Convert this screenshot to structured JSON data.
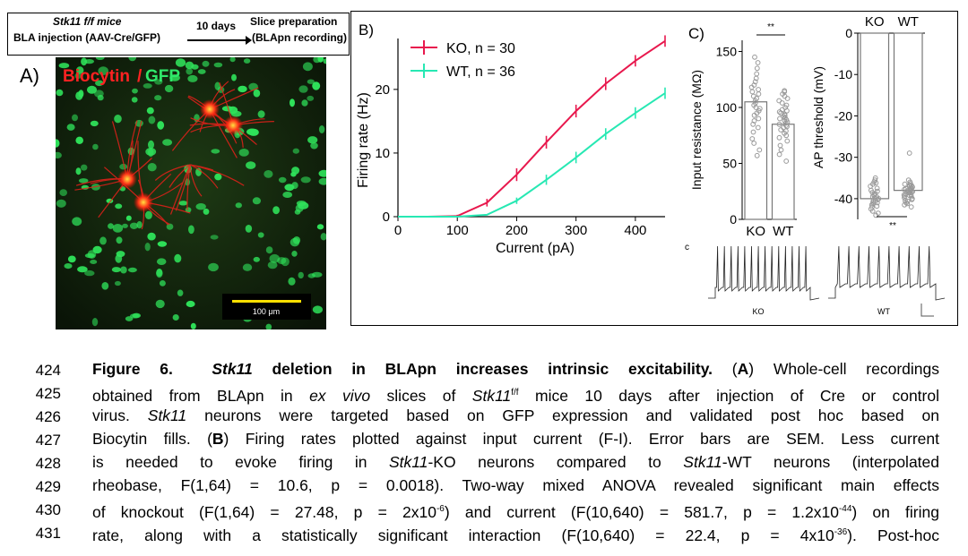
{
  "schematic": {
    "line1": "Stk11 f/f mice",
    "line2": "BLA injection (AAV-Cre/GFP)",
    "arrow_label": "10 days",
    "right1": "Slice preparation",
    "right2": "(BLApn recording)"
  },
  "panel_a": {
    "label": "A)",
    "title_red": "Biocytin",
    "title_sep": "/",
    "title_green": "GFP",
    "scale_bar": "100 μm"
  },
  "panel_b": {
    "label": "B)",
    "chart_data": {
      "type": "line",
      "xlabel": "Current (pA)",
      "ylabel": "Firing rate (Hz)",
      "xlim": [
        0,
        450
      ],
      "ylim": [
        0,
        28
      ],
      "xticks": [
        0,
        100,
        200,
        300,
        400
      ],
      "yticks": [
        0,
        10,
        20
      ],
      "legend_position": "top-left",
      "x": [
        0,
        50,
        100,
        150,
        200,
        250,
        300,
        350,
        400,
        450
      ],
      "series": [
        {
          "name": "KO, n = 30",
          "color": "#e8184d",
          "values": [
            0,
            0,
            0.1,
            2.2,
            6.6,
            11.7,
            16.6,
            20.9,
            24.5,
            27.6
          ],
          "err": [
            0,
            0,
            0.2,
            0.6,
            1.0,
            1.0,
            1.0,
            1.0,
            0.9,
            0.9
          ]
        },
        {
          "name": "WT, n = 36",
          "color": "#27e8b3",
          "values": [
            0,
            0,
            0,
            0.3,
            2.5,
            5.8,
            9.3,
            13.0,
            16.3,
            19.4
          ],
          "err": [
            0,
            0,
            0,
            0.1,
            0.5,
            0.8,
            0.9,
            0.9,
            0.9,
            0.9
          ]
        }
      ]
    }
  },
  "panel_c": {
    "label": "C)",
    "sig1": "**",
    "sig2": "**",
    "chart_data": [
      {
        "type": "bar",
        "ylabel": "Input resistance (MΩ)",
        "categories": [
          "KO",
          "WT"
        ],
        "values": [
          105,
          85
        ],
        "ylim": [
          0,
          160
        ],
        "yticks": [
          0,
          50,
          100,
          150
        ],
        "points": [
          [
            57,
            62,
            68,
            72,
            78,
            82,
            85,
            88,
            90,
            93,
            95,
            97,
            99,
            100,
            102,
            104,
            106,
            108,
            110,
            112,
            114,
            116,
            118,
            120,
            123,
            126,
            130,
            135,
            140,
            145
          ],
          [
            52,
            58,
            62,
            66,
            70,
            73,
            75,
            77,
            79,
            80,
            82,
            83,
            84,
            85,
            86,
            87,
            88,
            89,
            90,
            91,
            92,
            93,
            94,
            95,
            96,
            97,
            98,
            100,
            102,
            104,
            106,
            108,
            110,
            112,
            114,
            115
          ]
        ]
      },
      {
        "type": "bar",
        "ylabel": "AP threshold (mV)",
        "categories": [
          "KO",
          "WT"
        ],
        "values": [
          -40,
          -38
        ],
        "ylim": [
          -45,
          0
        ],
        "yticks": [
          0,
          -10,
          -20,
          -30,
          -40
        ],
        "points": [
          [
            -44,
            -43.5,
            -43,
            -42.5,
            -42,
            -41.8,
            -41.5,
            -41.2,
            -41,
            -40.8,
            -40.5,
            -40.2,
            -40,
            -39.8,
            -39.5,
            -39.2,
            -39,
            -38.8,
            -38.5,
            -38.2,
            -38,
            -37.5,
            -37,
            -36.5,
            -36,
            -35.5,
            -35,
            -36.2,
            -39.6,
            -40.4
          ],
          [
            -42,
            -41.5,
            -41,
            -40.5,
            -40,
            -39.8,
            -39.5,
            -39.2,
            -39,
            -38.8,
            -38.5,
            -38.2,
            -38,
            -37.8,
            -37.5,
            -37.2,
            -37,
            -36.8,
            -36.5,
            -36,
            -35.5,
            -38.4,
            -38.6,
            -37.6,
            -39.4,
            -40.2,
            -41.2,
            -36.4,
            -37.4,
            -38.1,
            -39.1,
            -38.3,
            -37.9,
            -40.6,
            -29,
            -36.7
          ]
        ]
      }
    ],
    "trace_letter": "c",
    "trace_ko": "KO",
    "trace_wt": "WT"
  },
  "caption": {
    "line_numbers": [
      "424",
      "425",
      "426",
      "427",
      "428",
      "429",
      "430",
      "431"
    ],
    "l1": {
      "fig": "Figure 6.",
      "gene": "Stk11",
      "bold_rest": " deletion in BLApn increases intrinsic excitability.",
      "p1": " (",
      "a": "A",
      "p2": ") Whole-cell recordings"
    },
    "l2": {
      "t1": "obtained from BLApn in ",
      "ex": "ex vivo",
      "t2": " slices of ",
      "gene": "Stk11",
      "sup": "f/f",
      "t3": " mice 10 days after injection of Cre or control"
    },
    "l3": {
      "t1": "virus. ",
      "gene": "Stk11",
      "t2": " neurons were targeted based on GFP expression and validated post hoc based on"
    },
    "l4": {
      "t1": "Biocytin fills. (",
      "b": "B",
      "t2": ") Firing rates plotted against input current (F-I). Error bars are SEM. Less current"
    },
    "l5": {
      "t1": "is needed to evoke firing in ",
      "g1": "Stk11",
      "t2": "-KO neurons compared to ",
      "g2": "Stk11",
      "t3": "-WT neurons (interpolated"
    },
    "l6": {
      "t1": "rheobase, F(1,64) = 10.6, p = 0.0018). Two-way mixed ANOVA revealed significant main effects"
    },
    "l7": {
      "t1": "of knockout (F(1,64) = 27.48, p = 2x10",
      "s1": "-6",
      "t2": ") and current (F(10,640) = 581.7, p = 1.2x10",
      "s2": "-44",
      "t3": ") on firing"
    },
    "l8": {
      "t1": "rate, along with a statistically significant interaction (F(10,640) = 22.4, p = 4x10",
      "s1": "-36",
      "t2": "). Post-hoc"
    }
  }
}
